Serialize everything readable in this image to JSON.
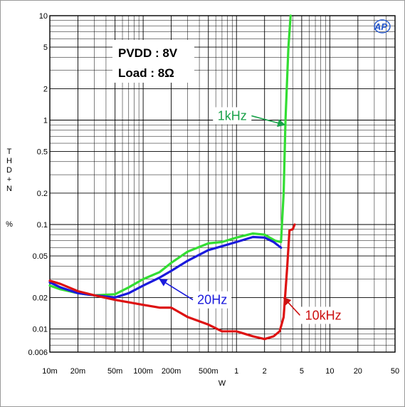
{
  "chart_data": {
    "type": "line",
    "xscale": "log",
    "yscale": "log",
    "xlabel": "W",
    "ylabel": "THD+N",
    "ylabel_unit": "%",
    "xlim": [
      0.01,
      50
    ],
    "ylim": [
      0.006,
      10
    ],
    "grid": true,
    "x_ticks": [
      {
        "value": 0.01,
        "label": "10m"
      },
      {
        "value": 0.02,
        "label": "20m"
      },
      {
        "value": 0.05,
        "label": "50m"
      },
      {
        "value": 0.1,
        "label": "100m"
      },
      {
        "value": 0.2,
        "label": "200m"
      },
      {
        "value": 0.5,
        "label": "500m"
      },
      {
        "value": 1,
        "label": "1"
      },
      {
        "value": 2,
        "label": "2"
      },
      {
        "value": 5,
        "label": "5"
      },
      {
        "value": 10,
        "label": "10"
      },
      {
        "value": 20,
        "label": "20"
      },
      {
        "value": 50,
        "label": "50"
      }
    ],
    "y_ticks": [
      {
        "value": 0.006,
        "label": "0.006"
      },
      {
        "value": 0.01,
        "label": "0.01"
      },
      {
        "value": 0.02,
        "label": "0.02"
      },
      {
        "value": 0.05,
        "label": "0.05"
      },
      {
        "value": 0.1,
        "label": "0.1"
      },
      {
        "value": 0.2,
        "label": "0.2"
      },
      {
        "value": 0.5,
        "label": "0.5"
      },
      {
        "value": 1,
        "label": "1"
      },
      {
        "value": 2,
        "label": "2"
      },
      {
        "value": 5,
        "label": "5"
      },
      {
        "value": 10,
        "label": "10"
      }
    ],
    "conditions": [
      "PVDD : 8V",
      "Load : 8Ω"
    ],
    "logo": "AP",
    "series": [
      {
        "name": "1kHz",
        "color": "#33dd33",
        "points": [
          [
            0.01,
            0.026
          ],
          [
            0.013,
            0.024
          ],
          [
            0.02,
            0.022
          ],
          [
            0.03,
            0.021
          ],
          [
            0.05,
            0.0215
          ],
          [
            0.07,
            0.025
          ],
          [
            0.1,
            0.03
          ],
          [
            0.15,
            0.035
          ],
          [
            0.2,
            0.043
          ],
          [
            0.3,
            0.055
          ],
          [
            0.5,
            0.066
          ],
          [
            0.7,
            0.068
          ],
          [
            1,
            0.075
          ],
          [
            1.5,
            0.082
          ],
          [
            2,
            0.08
          ],
          [
            2.6,
            0.07
          ],
          [
            3.0,
            0.068
          ],
          [
            3.2,
            0.2
          ],
          [
            3.35,
            1.0
          ],
          [
            3.6,
            5
          ],
          [
            3.8,
            10
          ]
        ]
      },
      {
        "name": "20Hz",
        "color": "#1a1adc",
        "points": [
          [
            0.01,
            0.028
          ],
          [
            0.013,
            0.025
          ],
          [
            0.02,
            0.022
          ],
          [
            0.03,
            0.021
          ],
          [
            0.05,
            0.02
          ],
          [
            0.07,
            0.022
          ],
          [
            0.1,
            0.026
          ],
          [
            0.15,
            0.031
          ],
          [
            0.2,
            0.036
          ],
          [
            0.3,
            0.045
          ],
          [
            0.5,
            0.057
          ],
          [
            0.7,
            0.062
          ],
          [
            1,
            0.068
          ],
          [
            1.5,
            0.076
          ],
          [
            2,
            0.075
          ],
          [
            2.5,
            0.068
          ],
          [
            3.0,
            0.06
          ]
        ]
      },
      {
        "name": "10kHz",
        "color": "#dd1111",
        "points": [
          [
            0.01,
            0.029
          ],
          [
            0.013,
            0.027
          ],
          [
            0.02,
            0.023
          ],
          [
            0.03,
            0.021
          ],
          [
            0.05,
            0.019
          ],
          [
            0.07,
            0.018
          ],
          [
            0.1,
            0.017
          ],
          [
            0.15,
            0.016
          ],
          [
            0.2,
            0.016
          ],
          [
            0.3,
            0.013
          ],
          [
            0.5,
            0.011
          ],
          [
            0.7,
            0.0095
          ],
          [
            1,
            0.0095
          ],
          [
            1.5,
            0.0085
          ],
          [
            2,
            0.008
          ],
          [
            2.5,
            0.0085
          ],
          [
            2.9,
            0.0095
          ],
          [
            3.2,
            0.013
          ],
          [
            3.5,
            0.04
          ],
          [
            3.7,
            0.088
          ],
          [
            4.0,
            0.09
          ],
          [
            4.2,
            0.1
          ]
        ]
      }
    ],
    "annotations": [
      {
        "text": "1kHz",
        "series": "1kHz",
        "color": "#1aa24a",
        "point": [
          3.3,
          0.9
        ],
        "box": [
          0.9,
          1.1
        ]
      },
      {
        "text": "20Hz",
        "series": "20Hz",
        "color": "#1a1adc",
        "point": [
          0.15,
          0.03
        ],
        "box": [
          0.55,
          0.019
        ]
      },
      {
        "text": "10kHz",
        "series": "10kHz",
        "color": "#cc1111",
        "point": [
          3.2,
          0.02
        ],
        "box": [
          8.5,
          0.0135
        ]
      }
    ]
  }
}
